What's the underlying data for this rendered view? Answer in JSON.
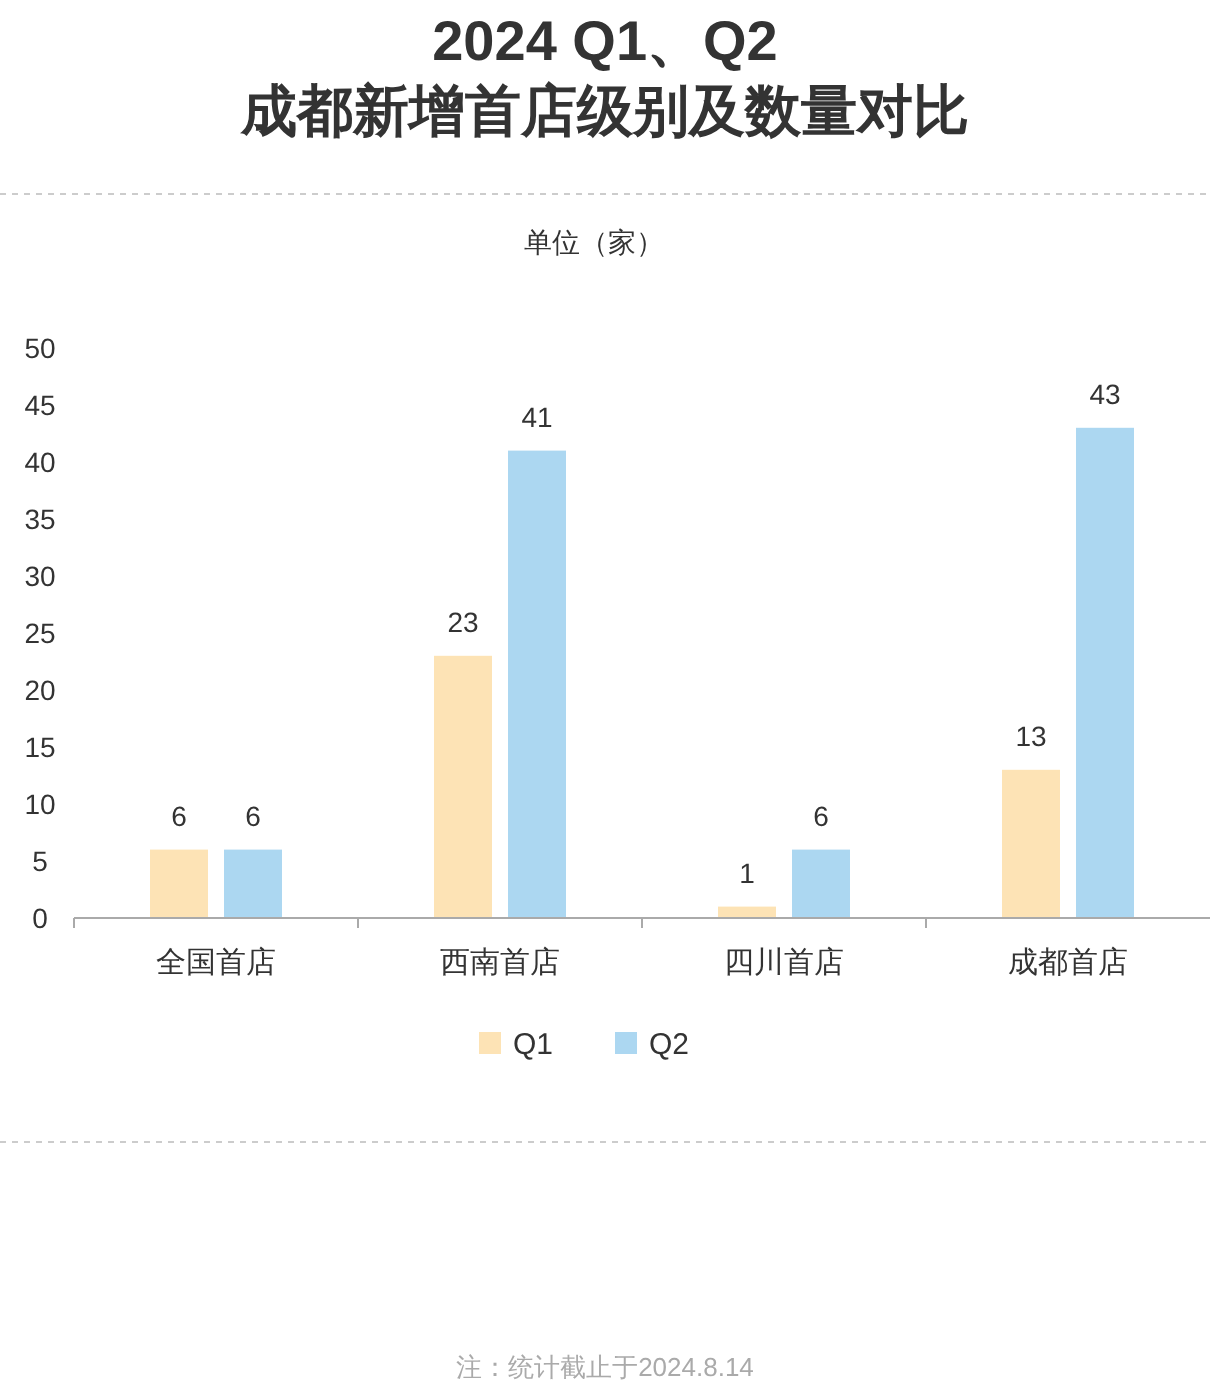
{
  "chart_data": {
    "type": "bar",
    "title": "2024 Q1、Q2\n成都新增首店级别及数量对比",
    "categories": [
      "全国首店",
      "西南首店",
      "四川首店",
      "成都首店"
    ],
    "series": [
      {
        "name": "Q1",
        "color": "#fde3b5",
        "values": [
          6,
          23,
          1,
          13
        ]
      },
      {
        "name": "Q2",
        "color": "#acd7f1",
        "values": [
          6,
          41,
          6,
          43
        ]
      }
    ],
    "ylim": [
      0,
      50
    ],
    "yticks": [
      0,
      5,
      10,
      15,
      20,
      25,
      30,
      35,
      40,
      45,
      50
    ],
    "data_labels": true,
    "legend": "bottom",
    "annotations": [
      "单位（家）",
      "注：统计截止于2024.8.14"
    ]
  }
}
